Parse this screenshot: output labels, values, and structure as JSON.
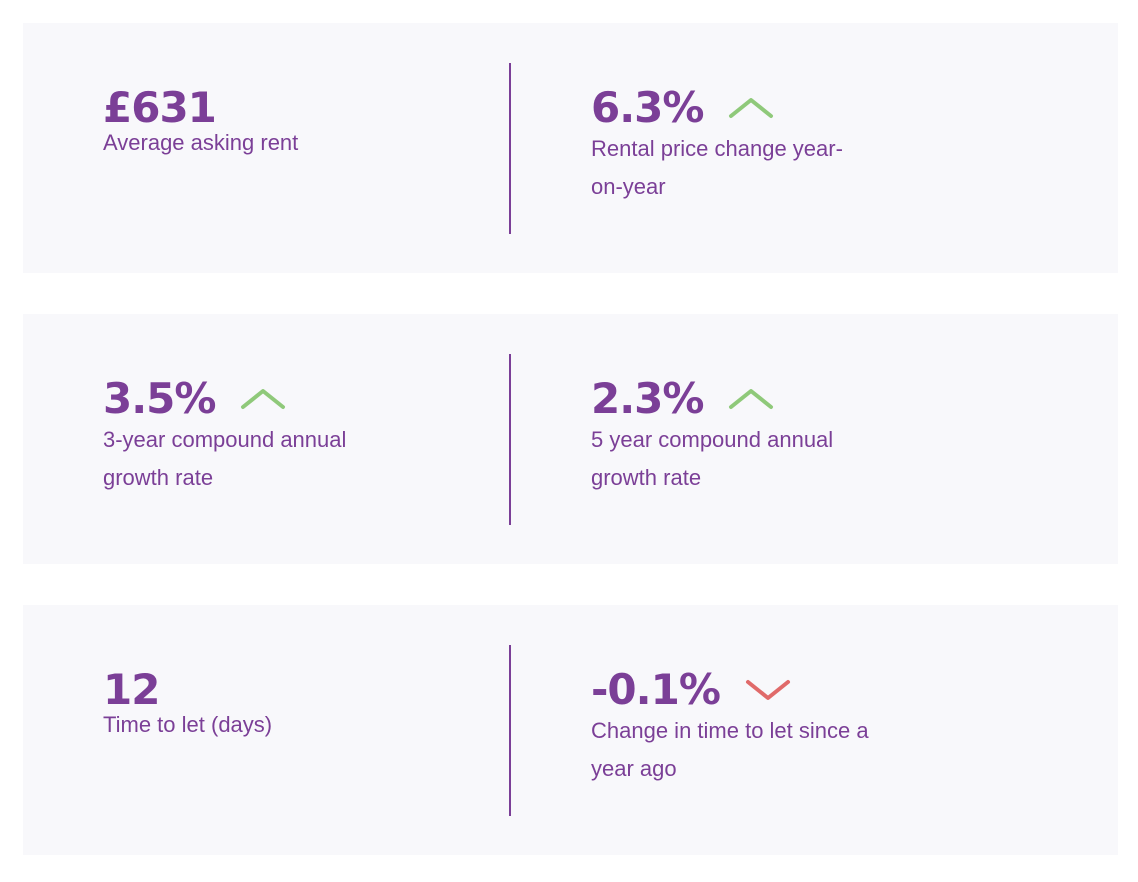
{
  "colors": {
    "text": "#7b3f97",
    "card_background": "#f8f8fb",
    "up_arrow": "#8fc97a",
    "down_arrow": "#e06a6a"
  },
  "stats": [
    {
      "left": {
        "value": "£631",
        "label": "Average asking rent"
      },
      "right": {
        "value": "6.3%",
        "label": "Rental price change year-on-year",
        "trend": "up",
        "icon": "chevron-up-icon"
      }
    },
    {
      "left": {
        "value": "3.5%",
        "label": "3-year compound annual growth rate",
        "trend": "up",
        "icon": "chevron-up-icon"
      },
      "right": {
        "value": "2.3%",
        "label": "5 year compound annual growth rate",
        "trend": "up",
        "icon": "chevron-up-icon"
      }
    },
    {
      "left": {
        "value": "12",
        "label": "Time to let (days)"
      },
      "right": {
        "value": "-0.1%",
        "label": "Change in time to let since a year ago",
        "trend": "down",
        "icon": "chevron-down-icon"
      }
    }
  ]
}
